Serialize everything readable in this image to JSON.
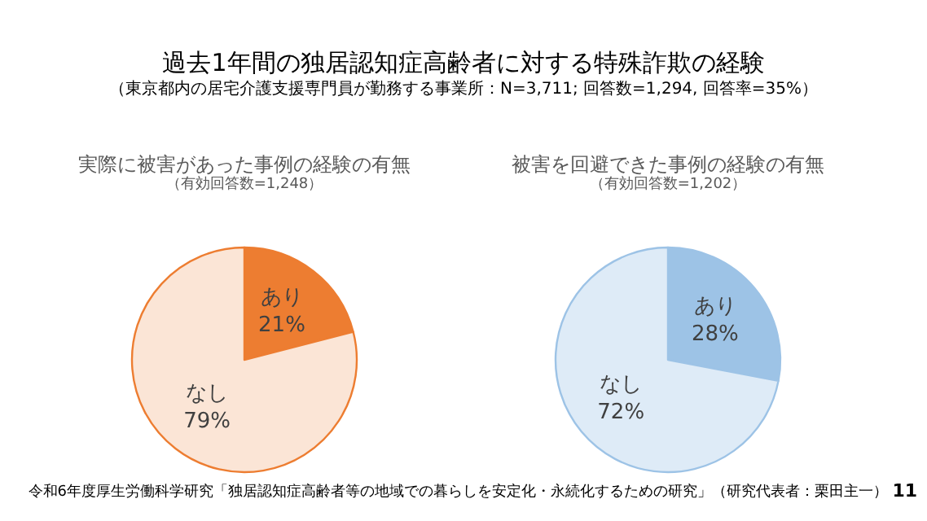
{
  "chart_data": [
    {
      "type": "other",
      "title": "過去1年間の独居認知症高齢者に対する特殊詐欺の経験",
      "subtitle": "（東京都内の居宅介護支援専門員が勤務する事業所：N=3,711; 回答数=1,294, 回答率=35%）",
      "annotations": [
        "令和6年度厚生労働科学研究「独居認知症高齢者等の地域での暮らしを安定化・永続化するための研究」（研究代表者：栗田主一）",
        "11"
      ]
    },
    {
      "type": "pie",
      "title": "実際に被害があった事例の経験の有無",
      "subtitle": "（有効回答数=1,248）",
      "categories": [
        "あり",
        "なし"
      ],
      "values": [
        21,
        79
      ],
      "value_labels": [
        "21%",
        "79%"
      ],
      "colors": [
        "#ed7d31",
        "#fbe5d6"
      ]
    },
    {
      "type": "pie",
      "title": "被害を回避できた事例の経験の有無",
      "subtitle": "（有効回答数=1,202）",
      "categories": [
        "あり",
        "なし"
      ],
      "values": [
        28,
        72
      ],
      "value_labels": [
        "28%",
        "72%"
      ],
      "colors": [
        "#9dc3e6",
        "#deebf7"
      ]
    }
  ]
}
